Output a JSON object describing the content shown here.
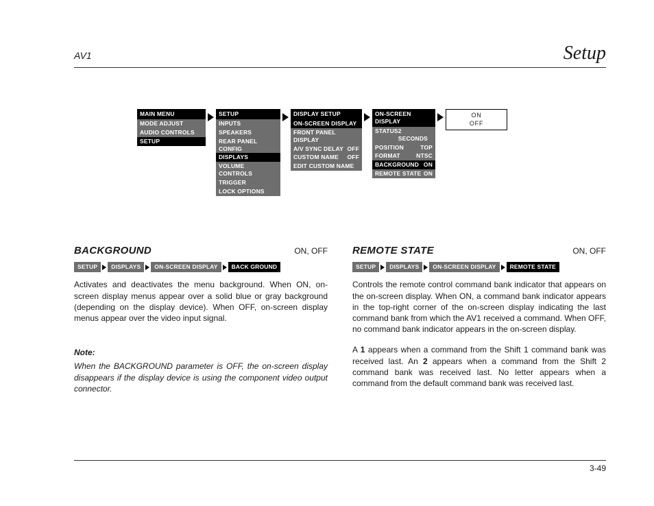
{
  "header": {
    "left": "AV1",
    "right": "Setup"
  },
  "nav": {
    "menus": [
      {
        "title": "MAIN MENU",
        "title_black": true,
        "rows": [
          {
            "label": "MODE ADJUST",
            "hl": false
          },
          {
            "label": "AUDIO CONTROLS",
            "hl": false
          },
          {
            "label": "SETUP",
            "hl": true
          }
        ]
      },
      {
        "title": "SETUP",
        "title_black": true,
        "rows": [
          {
            "label": "INPUTS",
            "hl": false
          },
          {
            "label": "SPEAKERS",
            "hl": false
          },
          {
            "label": "REAR PANEL CONFIG",
            "hl": false
          },
          {
            "label": "DISPLAYS",
            "hl": true
          },
          {
            "label": "VOLUME CONTROLS",
            "hl": false
          },
          {
            "label": "TRIGGER",
            "hl": false
          },
          {
            "label": "LOCK OPTIONS",
            "hl": false
          }
        ]
      },
      {
        "title": "DISPLAY SETUP",
        "title_black": true,
        "rows": [
          {
            "label": "ON-SCREEN DISPLAY",
            "hl": true
          },
          {
            "label": "FRONT PANEL DISPLAY",
            "hl": false
          },
          {
            "label": "A/V SYNC DELAY",
            "val": "OFF",
            "hl": false
          },
          {
            "label": "CUSTOM NAME",
            "val": "OFF",
            "hl": false
          },
          {
            "label": "EDIT CUSTOM NAME",
            "hl": false
          }
        ]
      },
      {
        "title": "ON-SCREEN DISPLAY",
        "title_black": true,
        "rows": [
          {
            "label": "STATUS",
            "val": "2 SECONDS",
            "hl": false
          },
          {
            "label": "POSITION",
            "val": "TOP",
            "hl": false
          },
          {
            "label": "FORMAT",
            "val": "NTSC",
            "hl": false
          },
          {
            "label": "BACKGROUND",
            "val": "ON",
            "hl": true
          },
          {
            "label": "REMOTE STATE",
            "val": "ON",
            "hl": false
          }
        ]
      }
    ],
    "options": [
      "ON",
      "OFF"
    ]
  },
  "colors": {
    "menu_bg": "#6e6e6e",
    "highlight_bg": "#000000",
    "text_on_menu": "#ffffff",
    "page_bg": "#ffffff",
    "rule": "#333333"
  },
  "sections": {
    "left": {
      "title": "BACKGROUND",
      "options": "ON, OFF",
      "crumbs": [
        "SETUP",
        "DISPLAYS",
        "ON-SCREEN DISPLAY",
        "BACK GROUND"
      ],
      "para": "Activates and deactivates the menu background. When ON, on-screen display menus appear over a solid blue or gray background (depending on the display device). When OFF, on-screen display menus appear over the video input signal.",
      "note_head": "Note:",
      "note_body": "When the BACKGROUND parameter is OFF, the on-screen display disappears if the display device is using the component video output connector."
    },
    "right": {
      "title": "REMOTE STATE",
      "options": "ON, OFF",
      "crumbs": [
        "SETUP",
        "DISPLAYS",
        "ON-SCREEN DISPLAY",
        "REMOTE  STATE"
      ],
      "para1": "Controls the remote control command bank indicator that appears on the on-screen display. When ON, a command bank indicator appears in the top-right corner of the on-screen display indicating the last command bank from which the AV1 received a command. When OFF, no command bank indicator appears in the on-screen display.",
      "para2_pre": "A ",
      "para2_b1": "1",
      "para2_mid1": " appears when a command from the Shift 1 command bank was received last. An ",
      "para2_b2": "2",
      "para2_mid2": " appears when a command from the Shift 2 command bank was received last. No letter appears when a command from the default command bank was received last."
    }
  },
  "footer": "3-49"
}
